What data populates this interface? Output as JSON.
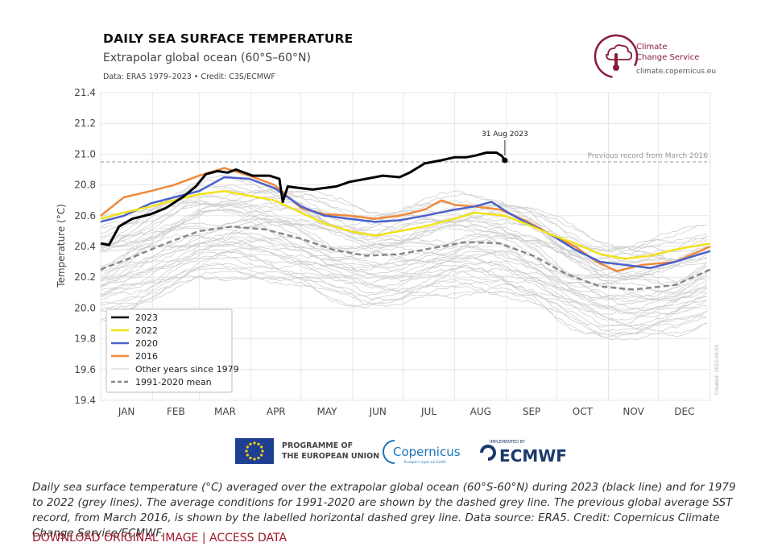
{
  "header": {
    "title": "DAILY SEA SURFACE TEMPERATURE",
    "subtitle": "Extrapolar global ocean (60°S–60°N)",
    "source": "Data: ERA5 1979–2023 • Credit: C3S/ECMWF"
  },
  "logo": {
    "name_line1": "Climate",
    "name_line2": "Change Service",
    "url": "climate.copernicus.eu",
    "brand_color": "#8a1c3a"
  },
  "chart_data": {
    "type": "line",
    "title": "DAILY SEA SURFACE TEMPERATURE",
    "ylabel": "Temperature (°C)",
    "xlabel": "",
    "ylim": [
      19.4,
      21.4
    ],
    "yticks": [
      "19.4",
      "19.6",
      "19.8",
      "20.0",
      "20.2",
      "20.4",
      "20.6",
      "20.8",
      "21.0",
      "21.2",
      "21.4"
    ],
    "months": [
      "JAN",
      "FEB",
      "MAR",
      "APR",
      "MAY",
      "JUN",
      "JUL",
      "AUG",
      "SEP",
      "OCT",
      "NOV",
      "DEC"
    ],
    "xdomain": [
      1,
      366
    ],
    "record_line": {
      "value": 20.95,
      "label": "Previous record from March 2016"
    },
    "annotation": {
      "label": "31 Aug 2023",
      "day": 243,
      "value": 20.96
    },
    "watermark": "Created: 2023-09-05",
    "series": [
      {
        "name": "2023",
        "color": "#000000",
        "width": 3,
        "points": [
          [
            1,
            20.42
          ],
          [
            6,
            20.41
          ],
          [
            12,
            20.53
          ],
          [
            20,
            20.58
          ],
          [
            31,
            20.61
          ],
          [
            40,
            20.65
          ],
          [
            50,
            20.72
          ],
          [
            58,
            20.79
          ],
          [
            64,
            20.87
          ],
          [
            71,
            20.89
          ],
          [
            77,
            20.88
          ],
          [
            82,
            20.9
          ],
          [
            92,
            20.86
          ],
          [
            102,
            20.86
          ],
          [
            108,
            20.84
          ],
          [
            110,
            20.69
          ],
          [
            113,
            20.79
          ],
          [
            120,
            20.78
          ],
          [
            128,
            20.77
          ],
          [
            135,
            20.78
          ],
          [
            142,
            20.79
          ],
          [
            150,
            20.82
          ],
          [
            160,
            20.84
          ],
          [
            170,
            20.86
          ],
          [
            180,
            20.85
          ],
          [
            186,
            20.88
          ],
          [
            195,
            20.94
          ],
          [
            205,
            20.96
          ],
          [
            213,
            20.98
          ],
          [
            220,
            20.98
          ],
          [
            225,
            20.99
          ],
          [
            232,
            21.01
          ],
          [
            238,
            21.01
          ],
          [
            241,
            20.99
          ],
          [
            243,
            20.96
          ]
        ]
      },
      {
        "name": "2022",
        "color": "#f2e21a",
        "width": 2.5,
        "points": [
          [
            1,
            20.58
          ],
          [
            15,
            20.62
          ],
          [
            31,
            20.66
          ],
          [
            45,
            20.7
          ],
          [
            60,
            20.74
          ],
          [
            75,
            20.76
          ],
          [
            90,
            20.73
          ],
          [
            105,
            20.7
          ],
          [
            121,
            20.62
          ],
          [
            135,
            20.55
          ],
          [
            150,
            20.5
          ],
          [
            165,
            20.47
          ],
          [
            180,
            20.5
          ],
          [
            195,
            20.53
          ],
          [
            213,
            20.58
          ],
          [
            225,
            20.62
          ],
          [
            243,
            20.6
          ],
          [
            255,
            20.55
          ],
          [
            270,
            20.48
          ],
          [
            285,
            20.42
          ],
          [
            300,
            20.35
          ],
          [
            315,
            20.32
          ],
          [
            330,
            20.34
          ],
          [
            345,
            20.38
          ],
          [
            366,
            20.42
          ]
        ]
      },
      {
        "name": "2020",
        "color": "#4a62cc",
        "width": 2.5,
        "points": [
          [
            1,
            20.56
          ],
          [
            15,
            20.6
          ],
          [
            31,
            20.68
          ],
          [
            45,
            20.72
          ],
          [
            60,
            20.76
          ],
          [
            75,
            20.85
          ],
          [
            90,
            20.84
          ],
          [
            105,
            20.78
          ],
          [
            121,
            20.66
          ],
          [
            135,
            20.6
          ],
          [
            150,
            20.58
          ],
          [
            165,
            20.56
          ],
          [
            180,
            20.57
          ],
          [
            195,
            20.6
          ],
          [
            213,
            20.64
          ],
          [
            225,
            20.66
          ],
          [
            235,
            20.69
          ],
          [
            245,
            20.62
          ],
          [
            255,
            20.56
          ],
          [
            270,
            20.48
          ],
          [
            285,
            20.38
          ],
          [
            300,
            20.3
          ],
          [
            315,
            20.28
          ],
          [
            330,
            20.26
          ],
          [
            345,
            20.3
          ],
          [
            366,
            20.37
          ]
        ]
      },
      {
        "name": "2016",
        "color": "#f08a3a",
        "width": 2.5,
        "points": [
          [
            1,
            20.6
          ],
          [
            15,
            20.72
          ],
          [
            31,
            20.76
          ],
          [
            45,
            20.8
          ],
          [
            60,
            20.86
          ],
          [
            75,
            20.91
          ],
          [
            90,
            20.86
          ],
          [
            105,
            20.8
          ],
          [
            121,
            20.65
          ],
          [
            135,
            20.61
          ],
          [
            150,
            20.6
          ],
          [
            165,
            20.58
          ],
          [
            180,
            20.6
          ],
          [
            195,
            20.64
          ],
          [
            205,
            20.7
          ],
          [
            213,
            20.67
          ],
          [
            225,
            20.66
          ],
          [
            240,
            20.64
          ],
          [
            255,
            20.57
          ],
          [
            270,
            20.48
          ],
          [
            285,
            20.4
          ],
          [
            298,
            20.3
          ],
          [
            310,
            20.24
          ],
          [
            325,
            20.28
          ],
          [
            345,
            20.3
          ],
          [
            366,
            20.4
          ]
        ]
      },
      {
        "name": "Other years since 1979",
        "color": "#cccccc",
        "width": 1,
        "points": []
      },
      {
        "name": "1991-2020 mean",
        "color": "#888888",
        "width": 2.5,
        "dash": true,
        "points": [
          [
            1,
            20.25
          ],
          [
            20,
            20.33
          ],
          [
            40,
            20.42
          ],
          [
            60,
            20.5
          ],
          [
            80,
            20.53
          ],
          [
            100,
            20.51
          ],
          [
            121,
            20.45
          ],
          [
            140,
            20.38
          ],
          [
            160,
            20.34
          ],
          [
            180,
            20.35
          ],
          [
            200,
            20.39
          ],
          [
            220,
            20.43
          ],
          [
            240,
            20.42
          ],
          [
            260,
            20.34
          ],
          [
            280,
            20.22
          ],
          [
            300,
            20.14
          ],
          [
            320,
            20.12
          ],
          [
            345,
            20.15
          ],
          [
            366,
            20.25
          ]
        ]
      }
    ]
  },
  "footer": {
    "eu_label_line1": "PROGRAMME OF",
    "eu_label_line2": "THE EUROPEAN UNION",
    "copernicus_label": "Copernicus",
    "copernicus_tagline": "Europe's eyes on Earth",
    "ecmwf_implemented": "IMPLEMENTED BY",
    "ecmwf_label": "ECMWF"
  },
  "caption": "Daily sea surface temperature (°C) averaged over the extrapolar global ocean (60°S-60°N) during 2023 (black line) and for 1979 to 2022 (grey lines). The average conditions for 1991-2020 are shown by the dashed grey line. The previous global average SST record, from March 2016, is shown by the labelled horizontal dashed grey line. Data source: ERA5. Credit: Copernicus Climate Change Service/ECMWF.",
  "links": {
    "download": "DOWNLOAD ORIGINAL IMAGE",
    "separator": "|",
    "access": "ACCESS DATA"
  }
}
